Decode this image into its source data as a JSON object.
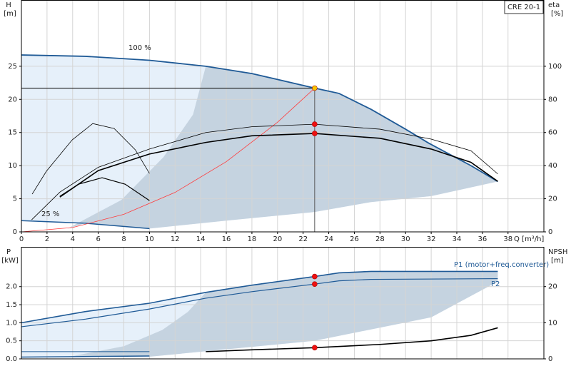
{
  "chart_data": [
    {
      "type": "line",
      "title": "CRE 20-1",
      "xlabel": "Q [m³/h]",
      "ylabel": [
        "H",
        "[m]"
      ],
      "y2label": [
        "eta",
        "[%]"
      ],
      "xlim": [
        0,
        40.8
      ],
      "xticks": [
        0,
        2,
        4,
        6,
        8,
        10,
        12,
        14,
        16,
        18,
        20,
        22,
        24,
        26,
        28,
        30,
        32,
        34,
        36,
        38
      ],
      "ylim": [
        0,
        35
      ],
      "yticks": [
        0,
        5,
        10,
        15,
        20,
        25
      ],
      "y2lim": [
        0,
        140
      ],
      "y2ticks": [
        0,
        20,
        40,
        60,
        80,
        100
      ],
      "grid": true,
      "series": [
        {
          "name": "100 %",
          "color": "#1f5a96",
          "width": 1.8,
          "x": [
            0,
            5,
            10,
            14.4,
            18,
            22.9,
            24.8,
            27.3,
            30,
            31.8,
            35.1,
            37.2
          ],
          "values": [
            26.7,
            26.5,
            25.9,
            25,
            23.9,
            21.7,
            20.9,
            18.5,
            15.5,
            13.4,
            10,
            7.6
          ]
        },
        {
          "name": "25 %",
          "color": "#1f5a96",
          "width": 1.5,
          "x": [
            0,
            5,
            10
          ],
          "values": [
            1.7,
            1.3,
            0.5
          ]
        },
        {
          "color": "#c5d3e0",
          "width": 0,
          "x": [
            10,
            16,
            22.9,
            27.3,
            32,
            37.2
          ],
          "values": [
            0.5,
            1.7,
            3,
            4.5,
            5.4,
            7.6
          ]
        },
        {
          "color": "#c5d3e0",
          "width": 0,
          "x": [
            3.6,
            7.8,
            11.1,
            13.4,
            14.4
          ],
          "values": [
            0.5,
            4.8,
            11.3,
            17.7,
            25
          ]
        },
        {
          "color": "#ff3b3b",
          "width": 0.8,
          "x": [
            0,
            4,
            8,
            12,
            16,
            20,
            22.9
          ],
          "values": [
            0,
            0.66,
            2.65,
            5.96,
            10.6,
            16.55,
            21.7
          ]
        },
        {
          "color": "#000000",
          "width": 1.6,
          "axis": "y2",
          "x": [
            3,
            6,
            10,
            14.4,
            18,
            22.9,
            28,
            32,
            35.1,
            37.2
          ],
          "values": [
            21,
            37,
            47,
            54,
            58,
            59.4,
            56.5,
            50,
            42,
            30.5
          ]
        },
        {
          "color": "#000000",
          "width": 0.8,
          "axis": "y2",
          "x": [
            0.8,
            3,
            6,
            10,
            14.4,
            18,
            22.9,
            28,
            32,
            35.1,
            37.2
          ],
          "values": [
            7.3,
            24,
            39,
            50,
            60,
            63.5,
            65,
            62,
            56,
            49,
            35
          ]
        },
        {
          "color": "#000000",
          "width": 0.8,
          "axis": "y2",
          "x": [
            0.84,
            1.95,
            3.96,
            5.57,
            7.24,
            8.9,
            10
          ],
          "values": [
            22.8,
            36.6,
            55.5,
            65.4,
            62.4,
            49.5,
            35.3
          ]
        },
        {
          "color": "#000000",
          "width": 1.2,
          "axis": "y2",
          "x": [
            3,
            4.46,
            6.3,
            8.1,
            10
          ],
          "values": [
            21.5,
            28.8,
            32.7,
            28.8,
            18.9
          ]
        }
      ],
      "points": [
        {
          "x": 22.9,
          "value": 21.7,
          "color": "#f5c400"
        },
        {
          "x": 22.9,
          "value": 65,
          "axis": "y2",
          "color": "#ee1111"
        },
        {
          "x": 22.9,
          "value": 59.4,
          "axis": "y2",
          "color": "#ee1111"
        }
      ]
    },
    {
      "type": "line",
      "ylabel": [
        "P",
        "[kW]"
      ],
      "y2label": [
        "NPSH",
        "[m]"
      ],
      "xlim": [
        0,
        40.8
      ],
      "ylim": [
        0,
        3.1
      ],
      "yticks": [
        {
          "value": 0,
          "label": "0.0"
        },
        0.5,
        {
          "value": 1,
          "label": "1.0"
        },
        1.5,
        {
          "value": 2,
          "label": "2.0"
        }
      ],
      "y2lim": [
        0,
        31
      ],
      "y2ticks": [
        0,
        10,
        20
      ],
      "grid": true,
      "series": [
        {
          "name": "P1 (motor+freq.converter)",
          "color": "#1f5a96",
          "width": 1.6,
          "x": [
            0,
            5,
            10,
            14.4,
            18,
            22.9,
            24.8,
            27.3,
            37.2
          ],
          "values": [
            1.0,
            1.31,
            1.54,
            1.84,
            2.04,
            2.28,
            2.38,
            2.42,
            2.42
          ]
        },
        {
          "name": "P2",
          "color": "#1f5a96",
          "width": 1.2,
          "x": [
            0,
            5,
            10,
            14.4,
            18,
            22.9,
            24.8,
            27.3,
            37.2
          ],
          "values": [
            0.89,
            1.1,
            1.38,
            1.68,
            1.86,
            2.07,
            2.16,
            2.2,
            2.22
          ]
        },
        {
          "color": "#000000",
          "width": 1.6,
          "axis": "y2",
          "x": [
            14.4,
            18,
            22.9,
            28,
            32,
            35.1,
            37.2
          ],
          "values": [
            2,
            2.5,
            3.1,
            4,
            5,
            6.5,
            8.6
          ]
        },
        {
          "color": "#1f5a96",
          "width": 1,
          "x": [
            0,
            10
          ],
          "values": [
            0.2,
            0.2
          ]
        },
        {
          "color": "#1f5a96",
          "width": 1.5,
          "x": [
            0,
            3.6,
            10
          ],
          "values": [
            0.05,
            0.06,
            0.08
          ]
        },
        {
          "color": "#c5d3e0",
          "width": 0,
          "x": [
            10,
            22.9,
            32,
            37.2
          ],
          "values": [
            0.06,
            0.5,
            1.15,
            2.14
          ]
        },
        {
          "color": "#c5d3e0",
          "width": 0,
          "x": [
            3.6,
            8,
            11,
            13,
            14.4
          ],
          "values": [
            0.05,
            0.35,
            0.8,
            1.3,
            1.84
          ]
        }
      ],
      "points": [
        {
          "x": 22.9,
          "value": 2.28,
          "color": "#ee1111"
        },
        {
          "x": 22.9,
          "value": 2.07,
          "color": "#ee1111"
        },
        {
          "x": 22.9,
          "value": 3.1,
          "axis": "y2",
          "color": "#ee1111"
        }
      ]
    }
  ]
}
